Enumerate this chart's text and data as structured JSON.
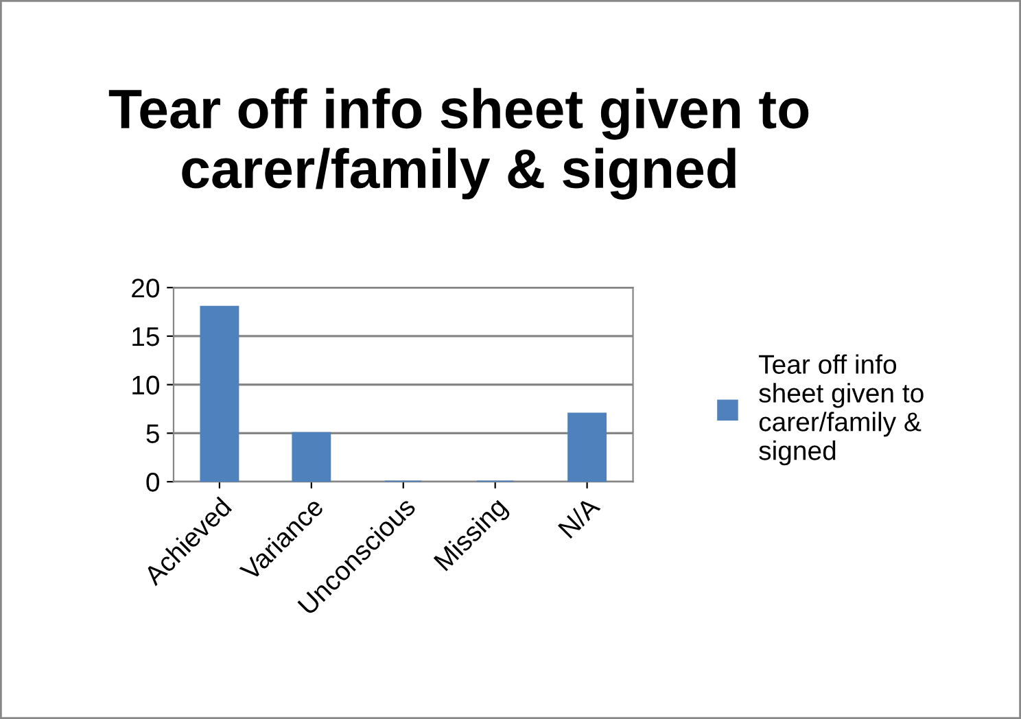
{
  "chart_data": {
    "type": "bar",
    "title": "Tear off info sheet given to carer/family & signed",
    "categories": [
      "Achieved",
      "Variance",
      "Unconscious",
      "Missing",
      "N/A"
    ],
    "series": [
      {
        "name": "Tear off info sheet given to carer/family & signed",
        "color": "#4f81bd",
        "values": [
          18,
          5,
          0,
          0,
          7
        ]
      }
    ],
    "ylim": [
      0,
      20
    ],
    "yticks": [
      0,
      5,
      10,
      15,
      20
    ],
    "grid": "y",
    "legend": "right"
  }
}
